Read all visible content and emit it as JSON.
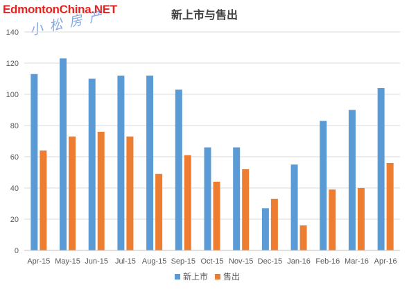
{
  "watermark": "EdmontonChina.NET",
  "handwritten_note": "小松房产",
  "colors": {
    "listed": "#5b9bd5",
    "sold": "#ed7d31",
    "grid": "#d9d9d9",
    "text": "#595959"
  },
  "chart_data": {
    "type": "bar",
    "title": "新上市与售出",
    "xlabel": "",
    "ylabel": "",
    "categories": [
      "Apr-15",
      "May-15",
      "Jun-15",
      "Jul-15",
      "Aug-15",
      "Sep-15",
      "Oct-15",
      "Nov-15",
      "Dec-15",
      "Jan-16",
      "Feb-16",
      "Mar-16",
      "Apr-16"
    ],
    "series": [
      {
        "name": "新上市",
        "values": [
          113,
          123,
          110,
          112,
          112,
          103,
          66,
          66,
          27,
          55,
          83,
          90,
          104
        ]
      },
      {
        "name": "售出",
        "values": [
          64,
          73,
          76,
          73,
          49,
          61,
          44,
          52,
          33,
          16,
          39,
          40,
          56
        ]
      }
    ],
    "ylim": [
      0,
      140
    ],
    "yticks": [
      0,
      20,
      40,
      60,
      80,
      100,
      120,
      140
    ],
    "grid": true,
    "legend": "bottom"
  }
}
